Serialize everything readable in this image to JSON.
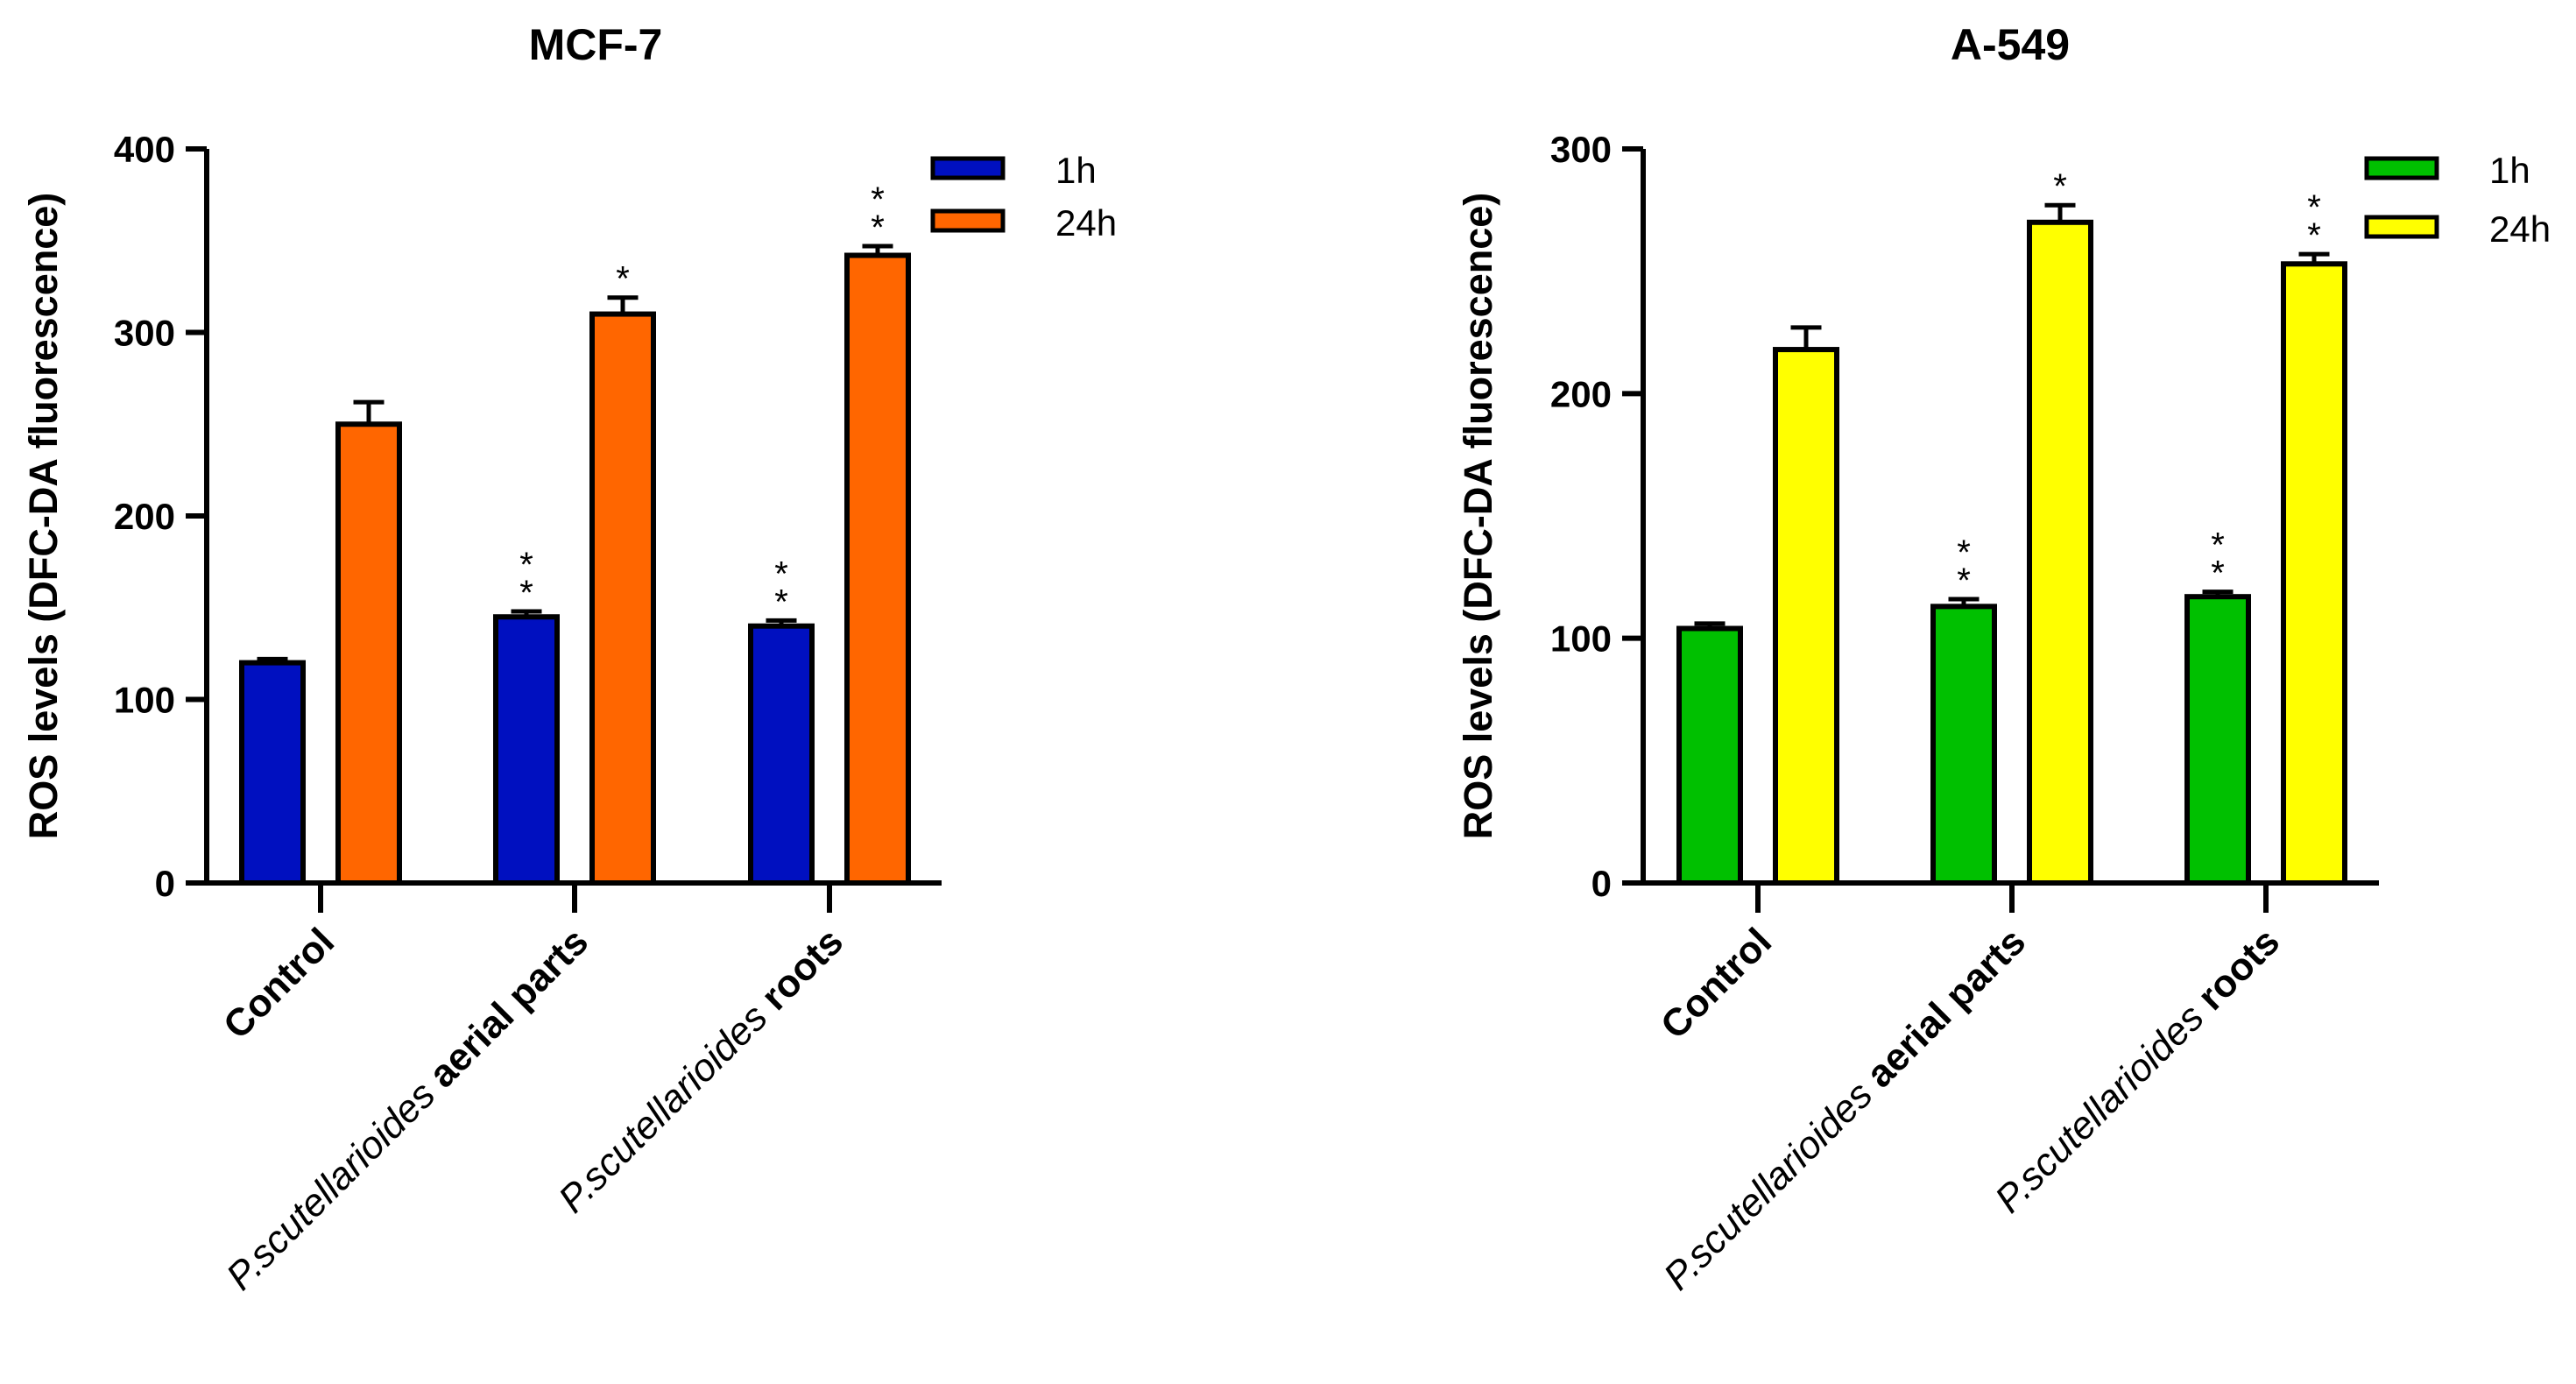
{
  "chart_data": [
    {
      "type": "bar",
      "title": "MCF-7",
      "ylabel": "ROS levels (DFC-DA fluorescence)",
      "xlabel": "",
      "ylim": [
        0,
        400
      ],
      "yticks": [
        0,
        100,
        200,
        300,
        400
      ],
      "categories": [
        {
          "prefix": "",
          "bold": "Control"
        },
        {
          "prefix": "P.scutellarioides ",
          "bold": "aerial parts"
        },
        {
          "prefix": "P.scutellarioides ",
          "bold": "roots"
        }
      ],
      "series": [
        {
          "name": "1h",
          "color": "#0010c0",
          "values": [
            120,
            145,
            140
          ],
          "errors": [
            2,
            3,
            3
          ],
          "annotations": [
            "",
            "* *",
            "* *"
          ]
        },
        {
          "name": "24h",
          "color": "#ff6600",
          "values": [
            250,
            310,
            342
          ],
          "errors": [
            12,
            9,
            5
          ],
          "annotations": [
            "",
            "*",
            "* *"
          ]
        }
      ],
      "legend": "top-right"
    },
    {
      "type": "bar",
      "title": "A-549",
      "ylabel": "ROS levels (DFC-DA fluorescence)",
      "xlabel": "",
      "ylim": [
        0,
        300
      ],
      "yticks": [
        0,
        100,
        200,
        300
      ],
      "categories": [
        {
          "prefix": "",
          "bold": "Control"
        },
        {
          "prefix": "P.scutellarioides ",
          "bold": "aerial parts"
        },
        {
          "prefix": "P.scutellarioides ",
          "bold": "roots"
        }
      ],
      "series": [
        {
          "name": "1h",
          "color": "#00c000",
          "values": [
            104,
            113,
            117
          ],
          "errors": [
            2,
            3,
            2
          ],
          "annotations": [
            "",
            "* *",
            "* *"
          ]
        },
        {
          "name": "24h",
          "color": "#ffff00",
          "values": [
            218,
            270,
            253
          ],
          "errors": [
            9,
            7,
            4
          ],
          "annotations": [
            "",
            "*",
            "* *"
          ]
        }
      ],
      "legend": "top-right"
    }
  ]
}
